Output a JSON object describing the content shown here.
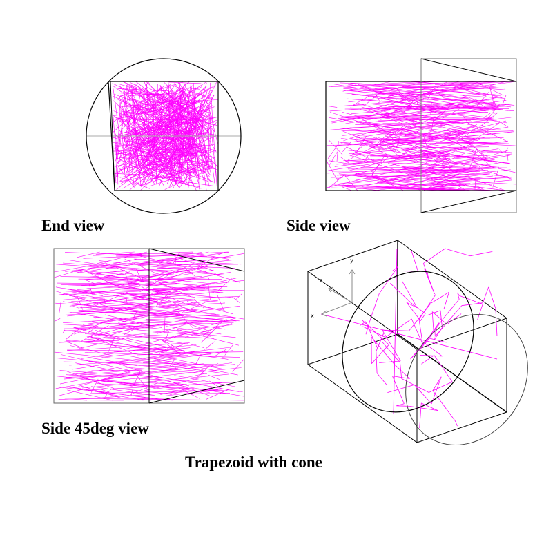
{
  "colors": {
    "track": "#ff00ff",
    "outline": "#000000",
    "thin": "#666666",
    "axis": "#888888"
  },
  "views": {
    "end": {
      "caption": "End view"
    },
    "side": {
      "caption": "Side view"
    },
    "side45": {
      "caption": "Side 45deg view"
    },
    "iso": {
      "axes": {
        "x": "x",
        "y": "y",
        "z": "z"
      }
    }
  },
  "title": "Trapezoid with cone"
}
